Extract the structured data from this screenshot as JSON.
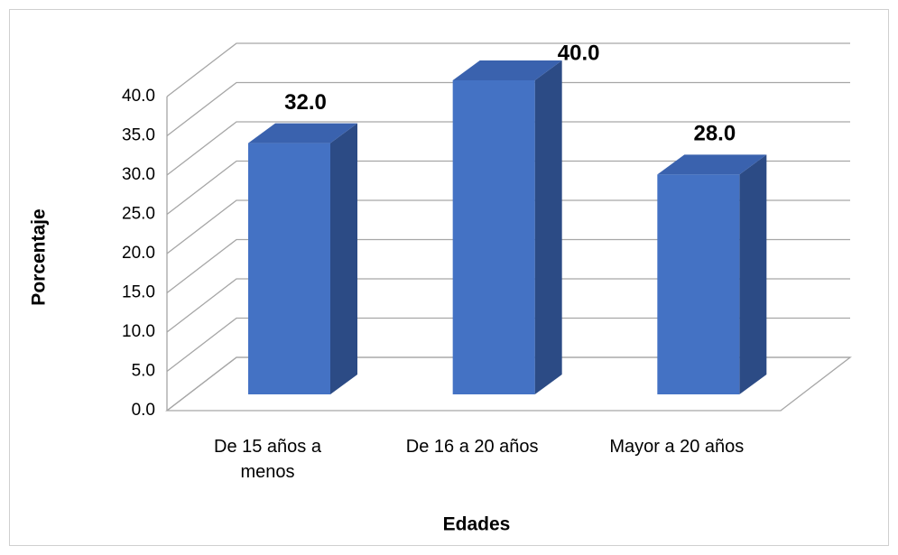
{
  "chart_data": {
    "type": "bar3d",
    "categories": [
      "De 15 años a menos",
      "De 16 a 20 años",
      "Mayor a 20 años"
    ],
    "values": [
      32,
      40,
      28
    ],
    "value_labels": [
      "32.0",
      "40.0",
      "28.0"
    ],
    "color": "#4472c4",
    "ylim": [
      0,
      40
    ],
    "yticks": [
      {
        "value": 0,
        "label": "0.0"
      },
      {
        "value": 5,
        "label": "5.0"
      },
      {
        "value": 10,
        "label": "10.0"
      },
      {
        "value": 15,
        "label": "15.0"
      },
      {
        "value": 20,
        "label": "20.0"
      },
      {
        "value": 25,
        "label": "25.0"
      },
      {
        "value": 30,
        "label": "30.0"
      },
      {
        "value": 35,
        "label": "35.0"
      },
      {
        "value": 40,
        "label": "40.0"
      }
    ],
    "ylabel": "Porcentaje",
    "xlabel": "Edades",
    "grid": true
  }
}
